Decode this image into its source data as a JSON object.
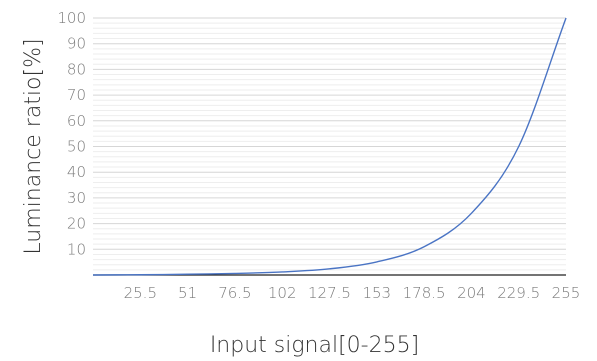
{
  "chart_data": {
    "type": "line",
    "xlabel": "Input signal[0-255]",
    "ylabel": "Luminance ratio[%]",
    "xlim": [
      0,
      255
    ],
    "ylim": [
      0,
      100
    ],
    "x_ticks": [
      25.5,
      51,
      76.5,
      102,
      127.5,
      153,
      178.5,
      204,
      229.5,
      255
    ],
    "x_tick_labels": [
      "25.5",
      "51",
      "76.5",
      "102",
      "127.5",
      "153",
      "178.5",
      "204",
      "229.5",
      "255"
    ],
    "y_ticks": [
      10,
      20,
      30,
      40,
      50,
      60,
      70,
      80,
      90,
      100
    ],
    "y_tick_labels": [
      "10",
      "20",
      "30",
      "40",
      "50",
      "60",
      "70",
      "80",
      "90",
      "100"
    ],
    "grid": true,
    "series": [
      {
        "x": [
          0,
          25.5,
          51,
          76.5,
          102,
          127.5,
          153,
          178.5,
          204,
          229.5,
          255
        ],
        "values": [
          0,
          0.1,
          0.3,
          0.6,
          1.2,
          2.4,
          5.1,
          11,
          24,
          50,
          100
        ],
        "color": "#4a74c4"
      }
    ]
  }
}
